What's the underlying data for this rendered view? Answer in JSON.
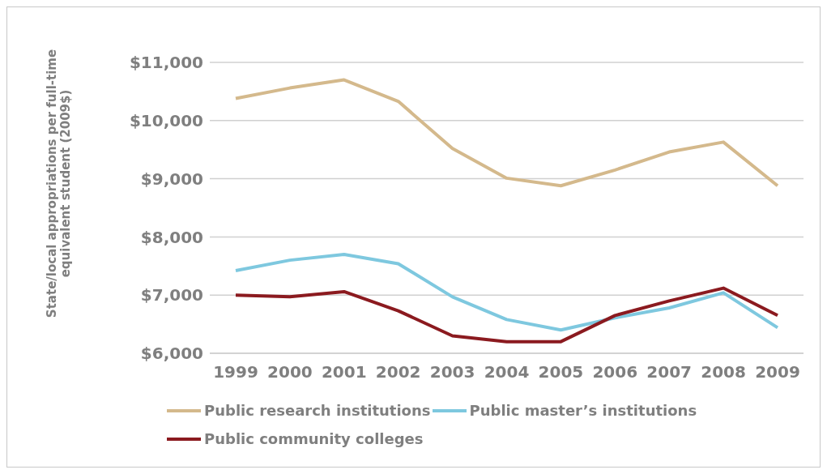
{
  "chart_data": {
    "type": "line",
    "ylabel": "State/local appropriations per full-time equivalent student (2009$)",
    "categories": [
      "1999",
      "2000",
      "2001",
      "2002",
      "2003",
      "2004",
      "2005",
      "2006",
      "2007",
      "2008",
      "2009"
    ],
    "series": [
      {
        "name": "Public research institutions",
        "color": "#d4b98c",
        "values": [
          10380,
          10560,
          10700,
          10330,
          9520,
          9010,
          8880,
          9150,
          9460,
          9630,
          8880
        ]
      },
      {
        "name": "Public master’s institutions",
        "color": "#7ec8df",
        "values": [
          7420,
          7600,
          7700,
          7540,
          6970,
          6580,
          6400,
          6610,
          6780,
          7040,
          6440
        ]
      },
      {
        "name": "Public community colleges",
        "color": "#8b1a1f",
        "values": [
          7000,
          6970,
          7060,
          6730,
          6300,
          6200,
          6200,
          6650,
          6900,
          7120,
          6650
        ]
      }
    ],
    "ylim": [
      6000,
      11000
    ],
    "yticks": [
      {
        "value": 6000,
        "label": "$6,000"
      },
      {
        "value": 7000,
        "label": "$7,000"
      },
      {
        "value": 8000,
        "label": "$8,000"
      },
      {
        "value": 9000,
        "label": "$9,000"
      },
      {
        "value": 10000,
        "label": "$10,000"
      },
      {
        "value": 11000,
        "label": "$11,000"
      }
    ],
    "grid": "y",
    "legend": "bottom",
    "marker": "none",
    "line_style": "solid"
  }
}
